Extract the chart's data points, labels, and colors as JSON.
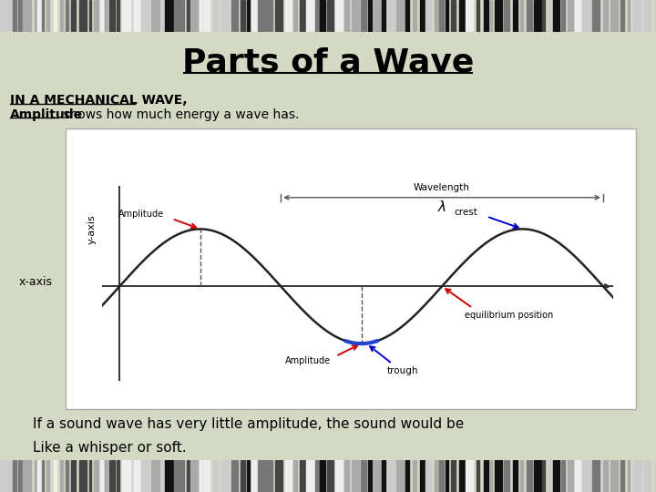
{
  "title": "Parts of a Wave",
  "bg_color": "#d4d9c4",
  "subtitle_line1": "IN A MECHANICAL WAVE,",
  "subtitle_line2_bold": "Amplitude",
  "subtitle_line2_rest": " shows how much energy a wave has.",
  "wave_color": "#222222",
  "axis_color": "#333333",
  "y_axis_label": "y-axis",
  "x_axis_label": "x-axis",
  "label_amplitude_top": "Amplitude",
  "label_amplitude_bot": "Amplitude",
  "label_crest": "crest",
  "label_trough": "trough",
  "label_equilibrium": "equilibrium position",
  "label_wavelength": "Wavelength",
  "label_lambda": "λ",
  "footer_line1": "If a sound wave has very little amplitude, the sound would be",
  "footer_line2": "Like a whisper or soft.",
  "dashed_line_color": "#555555",
  "arrow_red": "#cc0000",
  "arrow_blue": "#0000cc",
  "trough_blue": "#2244cc"
}
